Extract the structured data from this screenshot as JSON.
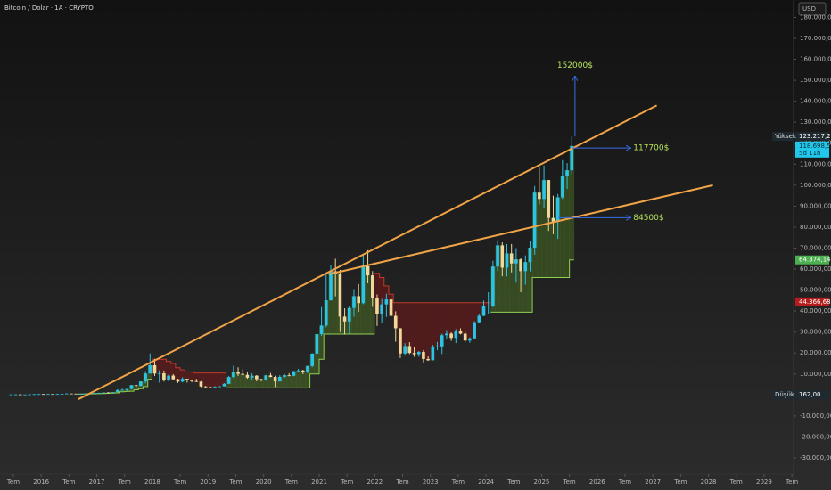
{
  "chart_data": {
    "type": "candlestick",
    "title": "Bitcoin / Dolar · 1A · CRYPTO",
    "currency": "USD",
    "up_color": "#2bc4e4",
    "down_color": "#efd99a",
    "x": [
      "2015-06",
      "2015-07",
      "2015-08",
      "2015-09",
      "2015-10",
      "2015-11",
      "2015-12",
      "2016-01",
      "2016-02",
      "2016-03",
      "2016-04",
      "2016-05",
      "2016-06",
      "2016-07",
      "2016-08",
      "2016-09",
      "2016-10",
      "2016-11",
      "2016-12",
      "2017-01",
      "2017-02",
      "2017-03",
      "2017-04",
      "2017-05",
      "2017-06",
      "2017-07",
      "2017-08",
      "2017-09",
      "2017-10",
      "2017-11",
      "2017-12",
      "2018-01",
      "2018-02",
      "2018-03",
      "2018-04",
      "2018-05",
      "2018-06",
      "2018-07",
      "2018-08",
      "2018-09",
      "2018-10",
      "2018-11",
      "2018-12",
      "2019-01",
      "2019-02",
      "2019-03",
      "2019-04",
      "2019-05",
      "2019-06",
      "2019-07",
      "2019-08",
      "2019-09",
      "2019-10",
      "2019-11",
      "2019-12",
      "2020-01",
      "2020-02",
      "2020-03",
      "2020-04",
      "2020-05",
      "2020-06",
      "2020-07",
      "2020-08",
      "2020-09",
      "2020-10",
      "2020-11",
      "2020-12",
      "2021-01",
      "2021-02",
      "2021-03",
      "2021-04",
      "2021-05",
      "2021-06",
      "2021-07",
      "2021-08",
      "2021-09",
      "2021-10",
      "2021-11",
      "2021-12",
      "2022-01",
      "2022-02",
      "2022-03",
      "2022-04",
      "2022-05",
      "2022-06",
      "2022-07",
      "2022-08",
      "2022-09",
      "2022-10",
      "2022-11",
      "2022-12",
      "2023-01",
      "2023-02",
      "2023-03",
      "2023-04",
      "2023-05",
      "2023-06",
      "2023-07",
      "2023-08",
      "2023-09",
      "2023-10",
      "2023-11",
      "2023-12",
      "2024-01",
      "2024-02",
      "2024-03",
      "2024-04",
      "2024-05",
      "2024-06",
      "2024-07",
      "2024-08",
      "2024-09",
      "2024-10",
      "2024-11",
      "2024-12",
      "2025-01",
      "2025-02",
      "2025-03",
      "2025-04",
      "2025-05",
      "2025-06",
      "2025-07"
    ],
    "open": [
      230,
      263,
      284,
      230,
      236,
      314,
      377,
      430,
      369,
      437,
      416,
      448,
      531,
      673,
      624,
      575,
      609,
      698,
      742,
      963,
      970,
      1190,
      1080,
      1348,
      2300,
      2480,
      2875,
      4700,
      4340,
      6470,
      10230,
      14160,
      10220,
      10330,
      6930,
      9240,
      7500,
      6390,
      7730,
      7030,
      6630,
      6370,
      4040,
      3740,
      3460,
      3850,
      4100,
      5320,
      8570,
      10820,
      10090,
      9630,
      8290,
      9200,
      7570,
      7190,
      9350,
      8600,
      6440,
      8660,
      9460,
      9140,
      11350,
      11680,
      10780,
      13800,
      19700,
      28990,
      33110,
      45140,
      58920,
      57750,
      37330,
      35040,
      41460,
      47100,
      43790,
      61320,
      57010,
      46310,
      38480,
      43190,
      45540,
      37710,
      31790,
      19780,
      23300,
      20050,
      19430,
      20500,
      17170,
      16550,
      23140,
      23150,
      28480,
      29270,
      27220,
      30480,
      29230,
      25940,
      26970,
      34670,
      37720,
      42270,
      42580,
      61200,
      71330,
      60670,
      67490,
      62680,
      64630,
      59010,
      63330,
      70220,
      96450,
      93430,
      102430,
      84370,
      82550,
      94200,
      104600,
      107100
    ],
    "high": [
      270,
      300,
      290,
      250,
      330,
      500,
      470,
      460,
      440,
      440,
      470,
      550,
      780,
      700,
      630,
      620,
      740,
      760,
      980,
      1160,
      1210,
      1350,
      1370,
      2800,
      3000,
      2920,
      4750,
      4950,
      6470,
      11400,
      19800,
      17200,
      11800,
      11700,
      9750,
      9960,
      7800,
      8500,
      7770,
      7400,
      7700,
      6600,
      4300,
      4100,
      4200,
      4200,
      5650,
      9100,
      13900,
      13200,
      12300,
      10950,
      10400,
      9500,
      7750,
      9600,
      10500,
      9200,
      9450,
      10080,
      10400,
      11450,
      12500,
      12050,
      14000,
      19900,
      29300,
      41950,
      58350,
      61800,
      64900,
      59600,
      41300,
      42400,
      50500,
      52900,
      67000,
      69000,
      59050,
      47900,
      45800,
      48200,
      47400,
      39900,
      31900,
      24700,
      25200,
      22800,
      20950,
      21450,
      18400,
      23950,
      25250,
      29200,
      30950,
      29800,
      31400,
      31800,
      30100,
      27500,
      35200,
      38450,
      45000,
      48950,
      64000,
      73800,
      72750,
      71950,
      71950,
      70000,
      65100,
      66500,
      73600,
      99600,
      108350,
      109350,
      102500,
      95000,
      95800,
      111900,
      110500,
      123217
    ],
    "low": [
      220,
      250,
      200,
      225,
      235,
      300,
      350,
      350,
      365,
      400,
      410,
      440,
      530,
      580,
      460,
      570,
      610,
      690,
      740,
      760,
      920,
      890,
      1060,
      1330,
      2080,
      1840,
      2640,
      2980,
      4110,
      5500,
      10900,
      9050,
      5900,
      6430,
      6430,
      7050,
      5750,
      6000,
      5900,
      6050,
      6100,
      3700,
      3120,
      3350,
      3400,
      3820,
      4080,
      5300,
      8100,
      9100,
      9350,
      7750,
      7300,
      6500,
      6450,
      6850,
      8450,
      3800,
      6550,
      8100,
      8900,
      8950,
      11100,
      9900,
      10400,
      13200,
      17550,
      28100,
      32300,
      45000,
      47000,
      30000,
      28800,
      29300,
      37300,
      39600,
      43300,
      53250,
      42000,
      32900,
      34300,
      37200,
      37600,
      25400,
      17600,
      18800,
      19500,
      18150,
      18200,
      15500,
      16250,
      16500,
      21350,
      19550,
      26950,
      25800,
      24750,
      28850,
      25300,
      24900,
      26550,
      34100,
      37600,
      38500,
      41850,
      59000,
      56550,
      56500,
      58400,
      53500,
      49000,
      52550,
      58900,
      66800,
      90800,
      89250,
      78200,
      76600,
      74400,
      93400,
      98200,
      105100
    ],
    "close": [
      263,
      284,
      230,
      236,
      314,
      377,
      430,
      369,
      437,
      416,
      448,
      531,
      673,
      624,
      575,
      609,
      698,
      742,
      963,
      970,
      1190,
      1080,
      1348,
      2300,
      2480,
      2875,
      4700,
      4340,
      6470,
      10230,
      14160,
      10220,
      10330,
      6930,
      9240,
      7500,
      6390,
      7730,
      7030,
      6630,
      6370,
      4040,
      3740,
      3460,
      3850,
      4100,
      5320,
      8570,
      10820,
      10090,
      9630,
      8290,
      9200,
      7570,
      7190,
      9350,
      8600,
      6440,
      8660,
      9460,
      9140,
      11350,
      11680,
      10780,
      13800,
      19700,
      28990,
      33110,
      45140,
      58920,
      57750,
      37330,
      35040,
      41460,
      47100,
      43790,
      61320,
      57010,
      46310,
      38480,
      43190,
      45540,
      37710,
      31790,
      19780,
      23300,
      20050,
      19430,
      20500,
      17170,
      16550,
      23140,
      23150,
      28480,
      29270,
      27220,
      30480,
      29230,
      25940,
      26970,
      34670,
      37720,
      42270,
      42580,
      61200,
      71330,
      60670,
      67490,
      62680,
      64630,
      59010,
      63330,
      70220,
      96450,
      93430,
      102430,
      84370,
      82550,
      94200,
      104600,
      107100,
      118699
    ],
    "support": {
      "color": "#8fd14f",
      "fill": "rgba(90,140,40,0.38)",
      "values": [
        null,
        null,
        null,
        null,
        null,
        null,
        null,
        null,
        null,
        null,
        null,
        null,
        null,
        null,
        null,
        400,
        450,
        500,
        550,
        600,
        700,
        800,
        900,
        1000,
        1500,
        1700,
        1800,
        2500,
        3000,
        4000,
        7500,
        null,
        null,
        null,
        null,
        null,
        null,
        null,
        null,
        null,
        null,
        null,
        null,
        null,
        null,
        null,
        null,
        3400,
        3400,
        3400,
        3400,
        3400,
        3400,
        3400,
        3400,
        3400,
        3400,
        3400,
        3400,
        3400,
        3400,
        3400,
        3400,
        3400,
        3400,
        10000,
        10000,
        17000,
        29000,
        29000,
        29000,
        29000,
        29000,
        29000,
        29000,
        29000,
        29000,
        29000,
        29000,
        null,
        null,
        null,
        null,
        null,
        null,
        null,
        null,
        null,
        null,
        null,
        null,
        null,
        null,
        null,
        null,
        null,
        null,
        null,
        null,
        null,
        null,
        null,
        null,
        null,
        39500,
        39500,
        39500,
        39500,
        39500,
        39500,
        39500,
        39500,
        39500,
        56000,
        56000,
        56000,
        56000,
        56000,
        56000,
        56000,
        56000,
        64374.14
      ]
    },
    "resistance": {
      "color": "#c0392b",
      "fill": "rgba(130,20,20,0.45)",
      "values": [
        null,
        null,
        null,
        null,
        null,
        null,
        null,
        null,
        null,
        null,
        null,
        null,
        null,
        null,
        null,
        null,
        null,
        null,
        null,
        null,
        null,
        null,
        null,
        null,
        null,
        null,
        null,
        null,
        null,
        null,
        null,
        17000,
        17000,
        17000,
        16000,
        15000,
        13000,
        12000,
        11000,
        11000,
        10500,
        10500,
        10500,
        10500,
        10500,
        10500,
        10500,
        null,
        null,
        null,
        null,
        null,
        null,
        null,
        null,
        null,
        null,
        null,
        null,
        null,
        null,
        null,
        null,
        null,
        null,
        null,
        null,
        null,
        null,
        null,
        null,
        null,
        null,
        null,
        null,
        null,
        null,
        null,
        null,
        58000,
        56000,
        52000,
        48000,
        44000,
        44000,
        44000,
        44000,
        44000,
        44000,
        44000,
        44000,
        44000,
        44000,
        44000,
        44000,
        44000,
        44000,
        44000,
        44000,
        44000,
        44000,
        44000,
        44000,
        44000,
        null,
        null,
        null,
        null,
        null,
        null,
        null,
        null,
        null,
        null,
        null,
        null,
        null,
        null,
        null,
        null,
        null,
        null
      ]
    },
    "trendlines": [
      {
        "color": "#f0a347",
        "x": [
          2016.67,
          2027.07
        ],
        "y": [
          -2000,
          138000
        ]
      },
      {
        "color": "#f0a347",
        "x": [
          2021.17,
          2028.08
        ],
        "y": [
          57500,
          100000
        ]
      }
    ],
    "targets": [
      {
        "label": "152000$",
        "value": 152000,
        "x": [
          2025.6
        ],
        "from": 123217
      },
      {
        "label": "117700$",
        "value": 117700,
        "x": [
          2025.55,
          2026.6
        ]
      },
      {
        "label": "84500$",
        "value": 84500,
        "x": [
          2025.3,
          2026.6
        ]
      }
    ],
    "badges": [
      {
        "prefix": "Yüksek",
        "label": "123.217,29",
        "value": 123217.29,
        "color": "#1f2a30"
      },
      {
        "label": "118.698,54",
        "note": "5d 11h",
        "value": 118698.54,
        "color": "#22c8ec"
      },
      {
        "label": "64.374,14",
        "value": 64374.14,
        "color": "#4caf50"
      },
      {
        "label": "44.366,68",
        "value": 44366.68,
        "color": "#b71c1c"
      },
      {
        "prefix": "Düşük",
        "label": "162,00",
        "value": 162,
        "color": "#1f2a30"
      }
    ],
    "xlim": [
      2015.26,
      2029.53
    ],
    "ylim": [
      -36800,
      188260
    ],
    "xticks": [
      {
        "value": 2015.5,
        "label": "Tem"
      },
      2016,
      {
        "value": 2016.5,
        "label": "Tem"
      },
      2017,
      {
        "value": 2017.5,
        "label": "Tem"
      },
      2018,
      {
        "value": 2018.5,
        "label": "Tem"
      },
      2019,
      {
        "value": 2019.5,
        "label": "Tem"
      },
      2020,
      {
        "value": 2020.5,
        "label": "Tem"
      },
      2021,
      {
        "value": 2021.5,
        "label": "Tem"
      },
      2022,
      {
        "value": 2022.5,
        "label": "Tem"
      },
      2023,
      {
        "value": 2023.5,
        "label": "Tem"
      },
      2024,
      {
        "value": 2024.5,
        "label": "Tem"
      },
      2025,
      {
        "value": 2025.5,
        "label": "Tem"
      },
      2026,
      {
        "value": 2026.5,
        "label": "Tem"
      },
      2027,
      {
        "value": 2027.5,
        "label": "Tem"
      },
      2028,
      {
        "value": 2028.5,
        "label": "Tem"
      },
      2029,
      {
        "value": 2029.5,
        "label": "Tem"
      }
    ],
    "yticks": [
      {
        "value": -30000,
        "label": "-30.000,00"
      },
      {
        "value": -20000,
        "label": "-20.000,00"
      },
      {
        "value": -10000,
        "label": "-10.000,00"
      },
      {
        "value": 10000,
        "label": "10.000,00"
      },
      {
        "value": 20000,
        "label": "20.000,00"
      },
      {
        "value": 30000,
        "label": "30.000,00"
      },
      {
        "value": 40000,
        "label": "40.000,00"
      },
      {
        "value": 50000,
        "label": "50.000,00"
      },
      {
        "value": 60000,
        "label": "60.000,00"
      },
      {
        "value": 70000,
        "label": "70.000,00"
      },
      {
        "value": 80000,
        "label": "80.000,00"
      },
      {
        "value": 90000,
        "label": "90.000,00"
      },
      {
        "value": 100000,
        "label": "100.000,00"
      },
      {
        "value": 110000,
        "label": "110.000,00"
      },
      {
        "value": 120000,
        "label": "120.000,00"
      },
      {
        "value": 130000,
        "label": "130.000,00"
      },
      {
        "value": 140000,
        "label": "140.000,00"
      },
      {
        "value": 150000,
        "label": "150.000,00"
      },
      {
        "value": 160000,
        "label": "160.000,00"
      },
      {
        "value": 170000,
        "label": "170.000,00"
      },
      {
        "value": 180000,
        "label": "180.000,00"
      }
    ],
    "grid": false
  }
}
